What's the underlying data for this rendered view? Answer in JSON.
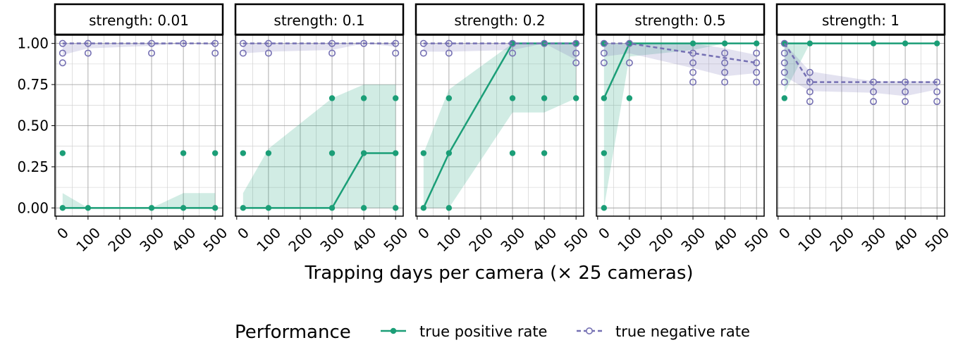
{
  "chart_data": [
    {
      "type": "line",
      "title": "strength: 0.01",
      "x": [
        20,
        100,
        300,
        400,
        500
      ],
      "series": [
        {
          "color": "#1b9e77",
          "dash": false,
          "values": [
            0,
            0,
            0,
            0,
            0
          ],
          "lower": [
            0,
            0,
            0,
            0,
            0
          ],
          "upper": [
            0.09,
            0,
            0,
            0.09,
            0.09
          ],
          "points_x": [
            20,
            20,
            100,
            300,
            400,
            400,
            500,
            500
          ],
          "points_y": [
            0,
            0.333,
            0,
            0,
            0,
            0.333,
            0,
            0.333
          ]
        },
        {
          "color": "#7570b3",
          "dash": true,
          "values": [
            1,
            1,
            1,
            1,
            1
          ],
          "lower": [
            0.93,
            0.97,
            0.985,
            1,
            0.99
          ],
          "upper": [
            1,
            1,
            1,
            1,
            1
          ],
          "points_x": [
            20,
            20,
            20,
            100,
            100,
            300,
            300,
            400,
            500,
            500
          ],
          "points_y": [
            1,
            0.941,
            0.882,
            1,
            0.941,
            1,
            0.941,
            1,
            1,
            0.941
          ]
        }
      ]
    },
    {
      "type": "line",
      "title": "strength: 0.1",
      "x": [
        20,
        100,
        300,
        400,
        500
      ],
      "series": [
        {
          "color": "#1b9e77",
          "dash": false,
          "values": [
            0,
            0,
            0,
            0.333,
            0.333
          ],
          "lower": [
            0,
            0,
            0,
            0,
            0
          ],
          "upper": [
            0.09,
            0.36,
            0.667,
            0.75,
            0.75
          ],
          "points_x": [
            20,
            20,
            100,
            100,
            300,
            300,
            300,
            400,
            400,
            400,
            500,
            500,
            500
          ],
          "points_y": [
            0,
            0.333,
            0,
            0.333,
            0,
            0.333,
            0.667,
            0,
            0.333,
            0.667,
            0,
            0.333,
            0.667
          ]
        },
        {
          "color": "#7570b3",
          "dash": true,
          "values": [
            1,
            1,
            1,
            1,
            1
          ],
          "lower": [
            0.94,
            0.95,
            0.96,
            1,
            0.98
          ],
          "upper": [
            1,
            1,
            1,
            1,
            1
          ],
          "points_x": [
            20,
            20,
            100,
            100,
            300,
            300,
            400,
            500,
            500
          ],
          "points_y": [
            1,
            0.941,
            1,
            0.941,
            1,
            0.941,
            1,
            1,
            0.941
          ]
        }
      ]
    },
    {
      "type": "line",
      "title": "strength: 0.2",
      "x": [
        20,
        100,
        300,
        400,
        500
      ],
      "series": [
        {
          "color": "#1b9e77",
          "dash": false,
          "values": [
            0,
            0.333,
            1,
            1,
            1
          ],
          "lower": [
            0,
            0,
            0.58,
            0.58,
            0.667
          ],
          "upper": [
            0.333,
            0.72,
            1,
            1,
            1
          ],
          "points_x": [
            20,
            20,
            100,
            100,
            100,
            300,
            300,
            300,
            400,
            400,
            400,
            500,
            500
          ],
          "points_y": [
            0,
            0.333,
            0,
            0.333,
            0.667,
            0.333,
            0.667,
            1,
            0.333,
            0.667,
            1,
            0.667,
            1
          ]
        },
        {
          "color": "#7570b3",
          "dash": true,
          "values": [
            1,
            1,
            1,
            1,
            1
          ],
          "lower": [
            0.95,
            0.95,
            0.96,
            1,
            0.9
          ],
          "upper": [
            1,
            1,
            1,
            1,
            1
          ],
          "points_x": [
            20,
            20,
            100,
            100,
            300,
            300,
            400,
            500,
            500,
            500
          ],
          "points_y": [
            1,
            0.941,
            1,
            0.941,
            1,
            0.941,
            1,
            1,
            0.941,
            0.882
          ]
        }
      ]
    },
    {
      "type": "line",
      "title": "strength: 0.5",
      "x": [
        20,
        100,
        300,
        400,
        500
      ],
      "series": [
        {
          "color": "#1b9e77",
          "dash": false,
          "values": [
            0.667,
            1,
            1,
            1,
            1
          ],
          "lower": [
            0,
            0.92,
            0.96,
            1,
            1
          ],
          "upper": [
            1,
            1,
            1,
            1,
            1
          ],
          "points_x": [
            20,
            20,
            20,
            20,
            100,
            100,
            300,
            400,
            500
          ],
          "points_y": [
            0,
            0.333,
            0.667,
            1,
            0.667,
            1,
            1,
            1,
            1
          ]
        },
        {
          "color": "#7570b3",
          "dash": true,
          "values": [
            1,
            1,
            0.941,
            0.912,
            0.882
          ],
          "lower": [
            0.92,
            0.94,
            0.85,
            0.8,
            0.82
          ],
          "upper": [
            1,
            1,
            1,
            0.97,
            0.93
          ],
          "points_x": [
            20,
            20,
            20,
            100,
            100,
            300,
            300,
            300,
            300,
            400,
            400,
            400,
            400,
            500,
            500,
            500,
            500
          ],
          "points_y": [
            1,
            0.941,
            0.882,
            1,
            0.882,
            0.941,
            0.882,
            0.824,
            0.765,
            0.941,
            0.882,
            0.824,
            0.765,
            0.941,
            0.882,
            0.824,
            0.765
          ]
        }
      ]
    },
    {
      "type": "line",
      "title": "strength: 1",
      "x": [
        20,
        100,
        300,
        400,
        500
      ],
      "series": [
        {
          "color": "#1b9e77",
          "dash": false,
          "values": [
            1,
            1,
            1,
            1,
            1
          ],
          "lower": [
            0.7,
            1,
            1,
            1,
            1
          ],
          "upper": [
            1,
            1,
            1,
            1,
            1
          ],
          "points_x": [
            20,
            20,
            100,
            300,
            400,
            500
          ],
          "points_y": [
            0.667,
            1,
            1,
            1,
            1,
            1
          ]
        },
        {
          "color": "#7570b3",
          "dash": true,
          "values": [
            1,
            0.765,
            0.765,
            0.765,
            0.765
          ],
          "lower": [
            0.8,
            0.71,
            0.7,
            0.68,
            0.72
          ],
          "upper": [
            1,
            0.83,
            0.77,
            0.77,
            0.77
          ],
          "points_x": [
            20,
            20,
            20,
            20,
            20,
            100,
            100,
            100,
            100,
            300,
            300,
            300,
            400,
            400,
            400,
            500,
            500,
            500
          ],
          "points_y": [
            1,
            0.941,
            0.882,
            0.824,
            0.765,
            0.824,
            0.765,
            0.706,
            0.647,
            0.765,
            0.706,
            0.647,
            0.765,
            0.706,
            0.647,
            0.765,
            0.706,
            0.647
          ]
        }
      ]
    }
  ],
  "xlim": [
    -4,
    524
  ],
  "ylim": [
    -0.05,
    1.05
  ],
  "xticks": [
    0,
    100,
    200,
    300,
    400,
    500
  ],
  "minor_xticks": [
    50,
    150,
    250,
    350,
    450
  ],
  "yticks": [
    {
      "value": 0,
      "label": "0.00"
    },
    {
      "value": 0.25,
      "label": "0.25"
    },
    {
      "value": 0.5,
      "label": "0.50"
    },
    {
      "value": 0.75,
      "label": "0.75"
    },
    {
      "value": 1,
      "label": "1.00"
    }
  ],
  "minor_yticks": [
    0.125,
    0.375,
    0.625,
    0.875
  ],
  "x_label": "Trapping days per camera (× 25 cameras)",
  "legend": {
    "title": "Performance",
    "entries": [
      "true positive rate",
      "true negative rate"
    ]
  }
}
